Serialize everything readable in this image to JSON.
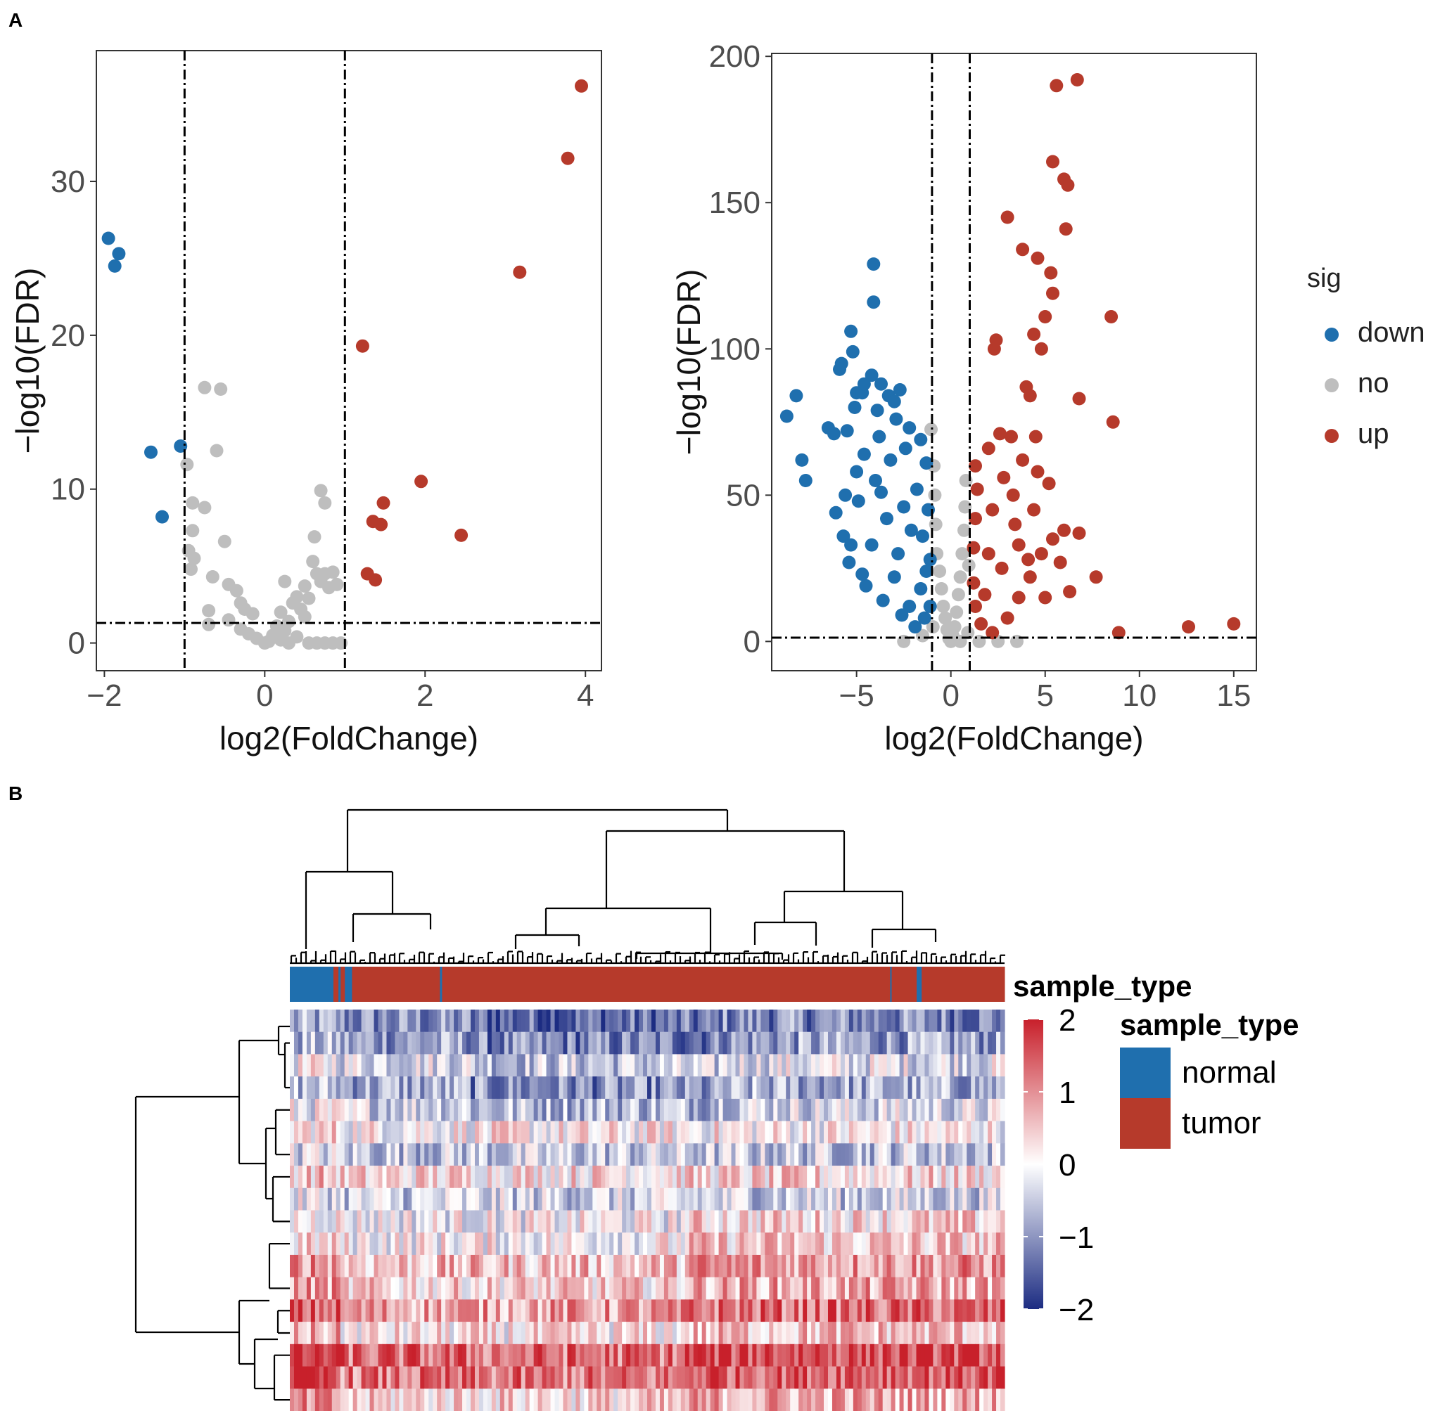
{
  "panels": {
    "a_label": "A",
    "b_label": "B"
  },
  "colors": {
    "down": "#1f6fae",
    "no": "#bebebe",
    "up": "#b63a2b",
    "normal": "#1f6fae",
    "tumor": "#b63a2b",
    "heat_low": "#1c2c82",
    "heat_mid": "#ffffff",
    "heat_high": "#c8202b"
  },
  "chart_data": [
    {
      "type": "scatter",
      "subtype": "volcano",
      "title": "",
      "xlabel": "log2(FoldChange)",
      "ylabel": "−log10(FDR)",
      "xlim": [
        -2.1,
        4.2
      ],
      "ylim": [
        -1.8,
        38.5
      ],
      "xticks": [
        -2,
        0,
        2,
        4
      ],
      "xtick_labels": [
        "−2",
        "0",
        "2",
        "4"
      ],
      "yticks": [
        0,
        10,
        20,
        30
      ],
      "ytick_labels": [
        "0",
        "10",
        "20",
        "30"
      ],
      "grid": false,
      "cutoffs": {
        "x": [
          -1,
          1
        ],
        "y": 1.3
      },
      "series": [
        {
          "name": "down",
          "points": [
            [
              -1.95,
              26.3
            ],
            [
              -1.82,
              25.3
            ],
            [
              -1.87,
              24.5
            ],
            [
              -1.42,
              12.4
            ],
            [
              -1.05,
              12.8
            ],
            [
              -1.28,
              8.2
            ]
          ]
        },
        {
          "name": "no",
          "points": [
            [
              -0.75,
              16.6
            ],
            [
              -0.55,
              16.5
            ],
            [
              -0.6,
              12.5
            ],
            [
              -0.97,
              11.6
            ],
            [
              -0.9,
              9.1
            ],
            [
              -0.75,
              8.8
            ],
            [
              -0.9,
              7.3
            ],
            [
              -0.5,
              6.6
            ],
            [
              -0.95,
              6.0
            ],
            [
              -0.88,
              5.5
            ],
            [
              -0.92,
              4.8
            ],
            [
              -0.65,
              4.3
            ],
            [
              -0.45,
              3.8
            ],
            [
              -0.35,
              3.4
            ],
            [
              -0.7,
              2.1
            ],
            [
              -0.3,
              2.6
            ],
            [
              -0.25,
              2.2
            ],
            [
              -0.15,
              1.9
            ],
            [
              -0.7,
              1.2
            ],
            [
              -0.45,
              1.5
            ],
            [
              -0.3,
              0.9
            ],
            [
              -0.2,
              0.6
            ],
            [
              -0.1,
              0.3
            ],
            [
              0.05,
              0.1
            ],
            [
              0.1,
              0.5
            ],
            [
              0.15,
              1.1
            ],
            [
              0.2,
              2.0
            ],
            [
              0.25,
              0.8
            ],
            [
              0.3,
              1.4
            ],
            [
              0.35,
              2.6
            ],
            [
              0.4,
              3.0
            ],
            [
              0.25,
              4.0
            ],
            [
              0.45,
              2.2
            ],
            [
              0.5,
              1.7
            ],
            [
              0.55,
              2.9
            ],
            [
              0.65,
              4.5
            ],
            [
              0.7,
              4.0
            ],
            [
              0.75,
              4.5
            ],
            [
              0.8,
              3.6
            ],
            [
              0.6,
              5.3
            ],
            [
              0.5,
              3.7
            ],
            [
              0.7,
              9.9
            ],
            [
              0.75,
              9.1
            ],
            [
              0.62,
              6.9
            ],
            [
              0.85,
              4.6
            ],
            [
              0.9,
              3.8
            ],
            [
              0.55,
              0.0
            ],
            [
              0.65,
              0.0
            ],
            [
              0.75,
              0.0
            ],
            [
              0.85,
              0.0
            ],
            [
              0.95,
              0.0
            ],
            [
              0.4,
              0.4
            ],
            [
              0.3,
              0.0
            ],
            [
              0.2,
              0.2
            ],
            [
              0.0,
              0.0
            ]
          ]
        },
        {
          "name": "up",
          "points": [
            [
              3.95,
              36.2
            ],
            [
              3.78,
              31.5
            ],
            [
              3.18,
              24.1
            ],
            [
              1.22,
              19.3
            ],
            [
              1.95,
              10.5
            ],
            [
              1.48,
              9.1
            ],
            [
              1.35,
              7.9
            ],
            [
              1.45,
              7.7
            ],
            [
              2.45,
              7.0
            ],
            [
              1.28,
              4.5
            ],
            [
              1.38,
              4.1
            ]
          ]
        }
      ]
    },
    {
      "type": "scatter",
      "subtype": "volcano",
      "title": "",
      "xlabel": "log2(FoldChange)",
      "ylabel": "−log10(FDR)",
      "xlim": [
        -9.5,
        16.2
      ],
      "ylim": [
        -10,
        201
      ],
      "xticks": [
        -5,
        0,
        5,
        10,
        15
      ],
      "xtick_labels": [
        "−5",
        "0",
        "5",
        "10",
        "15"
      ],
      "yticks": [
        0,
        50,
        100,
        150,
        200
      ],
      "ytick_labels": [
        "0",
        "50",
        "100",
        "150",
        "200"
      ],
      "grid": false,
      "cutoffs": {
        "x": [
          -1,
          1
        ],
        "y": 1.3
      },
      "series": [
        {
          "name": "down",
          "points": [
            [
              -4.1,
              129
            ],
            [
              -4.1,
              116
            ],
            [
              -5.3,
              106
            ],
            [
              -5.2,
              99
            ],
            [
              -5.8,
              95
            ],
            [
              -5.9,
              93
            ],
            [
              -8.2,
              84
            ],
            [
              -8.7,
              77
            ],
            [
              -7.9,
              62
            ],
            [
              -7.7,
              55
            ],
            [
              -6.5,
              73
            ],
            [
              -5.0,
              85
            ],
            [
              -4.7,
              85
            ],
            [
              -4.2,
              91
            ],
            [
              -3.7,
              88
            ],
            [
              -3.3,
              84
            ],
            [
              -2.7,
              86
            ],
            [
              -3.0,
              82
            ],
            [
              -5.5,
              72
            ],
            [
              -5.1,
              80
            ],
            [
              -6.2,
              71
            ],
            [
              -4.6,
              88
            ],
            [
              -3.9,
              79
            ],
            [
              -2.9,
              76
            ],
            [
              -2.2,
              73
            ],
            [
              -1.6,
              69
            ],
            [
              -1.3,
              61
            ],
            [
              -1.2,
              45
            ],
            [
              -1.1,
              28
            ],
            [
              -1.1,
              12
            ],
            [
              -1.4,
              8
            ],
            [
              -1.9,
              5
            ],
            [
              -2.6,
              9
            ],
            [
              -3.6,
              14
            ],
            [
              -4.5,
              19
            ],
            [
              -5.4,
              27
            ],
            [
              -6.1,
              44
            ],
            [
              -5.7,
              36
            ],
            [
              -4.9,
              48
            ],
            [
              -4.0,
              55
            ],
            [
              -3.2,
              62
            ],
            [
              -2.4,
              66
            ],
            [
              -1.8,
              52
            ],
            [
              -2.1,
              38
            ],
            [
              -2.8,
              30
            ],
            [
              -3.4,
              42
            ],
            [
              -4.2,
              33
            ],
            [
              -5.0,
              58
            ],
            [
              -5.6,
              50
            ],
            [
              -4.6,
              64
            ],
            [
              -3.8,
              70
            ],
            [
              -2.5,
              46
            ],
            [
              -3.0,
              22
            ],
            [
              -1.6,
              18
            ],
            [
              -2.2,
              12
            ],
            [
              -4.7,
              23
            ],
            [
              -5.3,
              33
            ],
            [
              -3.7,
              51
            ],
            [
              -1.5,
              36
            ],
            [
              -1.3,
              24
            ]
          ]
        },
        {
          "name": "no",
          "points": [
            [
              -1.05,
              72.5
            ],
            [
              -0.9,
              60
            ],
            [
              -0.85,
              50
            ],
            [
              -0.8,
              40
            ],
            [
              -0.75,
              30
            ],
            [
              -0.6,
              24
            ],
            [
              -0.5,
              18
            ],
            [
              -0.4,
              12
            ],
            [
              -0.3,
              8
            ],
            [
              -0.2,
              4
            ],
            [
              -0.1,
              1
            ],
            [
              0.0,
              0
            ],
            [
              0.1,
              2
            ],
            [
              0.2,
              5
            ],
            [
              0.3,
              10
            ],
            [
              0.4,
              16
            ],
            [
              0.5,
              22
            ],
            [
              0.6,
              30
            ],
            [
              0.7,
              38
            ],
            [
              0.75,
              46
            ],
            [
              0.8,
              55
            ],
            [
              0.5,
              0
            ],
            [
              1.5,
              0
            ],
            [
              2.5,
              0
            ],
            [
              3.5,
              0
            ],
            [
              -2.5,
              0
            ],
            [
              -1.5,
              2
            ],
            [
              0.9,
              3
            ],
            [
              -0.95,
              5
            ],
            [
              0.95,
              26
            ]
          ]
        },
        {
          "name": "up",
          "points": [
            [
              6.7,
              192
            ],
            [
              5.6,
              190
            ],
            [
              5.4,
              164
            ],
            [
              6.0,
              158
            ],
            [
              6.2,
              156
            ],
            [
              6.1,
              141
            ],
            [
              3.0,
              145
            ],
            [
              3.8,
              134
            ],
            [
              4.6,
              131
            ],
            [
              5.3,
              126
            ],
            [
              5.4,
              119
            ],
            [
              5.0,
              111
            ],
            [
              8.5,
              111
            ],
            [
              4.4,
              105
            ],
            [
              2.4,
              103
            ],
            [
              2.3,
              100
            ],
            [
              4.8,
              100
            ],
            [
              4.0,
              87
            ],
            [
              4.2,
              84
            ],
            [
              6.8,
              83
            ],
            [
              8.6,
              75
            ],
            [
              2.6,
              71
            ],
            [
              3.2,
              70
            ],
            [
              4.5,
              70
            ],
            [
              2.0,
              66
            ],
            [
              1.3,
              60
            ],
            [
              1.4,
              52
            ],
            [
              1.3,
              42
            ],
            [
              1.2,
              32
            ],
            [
              1.2,
              20
            ],
            [
              1.3,
              12
            ],
            [
              1.6,
              6
            ],
            [
              2.2,
              3
            ],
            [
              3.0,
              8
            ],
            [
              3.6,
              15
            ],
            [
              4.2,
              22
            ],
            [
              4.8,
              30
            ],
            [
              5.4,
              35
            ],
            [
              6.0,
              38
            ],
            [
              6.8,
              37
            ],
            [
              7.7,
              22
            ],
            [
              8.9,
              3
            ],
            [
              12.6,
              5
            ],
            [
              15.0,
              6
            ],
            [
              5.2,
              54
            ],
            [
              4.6,
              58
            ],
            [
              3.8,
              62
            ],
            [
              2.8,
              56
            ],
            [
              2.2,
              45
            ],
            [
              3.4,
              40
            ],
            [
              4.1,
              28
            ],
            [
              5.8,
              27
            ],
            [
              6.3,
              17
            ],
            [
              2.7,
              25
            ],
            [
              1.8,
              16
            ],
            [
              3.3,
              50
            ],
            [
              4.4,
              45
            ],
            [
              5.0,
              15
            ],
            [
              2.0,
              30
            ],
            [
              3.6,
              33
            ]
          ]
        }
      ]
    },
    {
      "type": "heatmap",
      "title": "",
      "annotation_label": "sample_type",
      "legend_title": "sample_type",
      "legend_items": [
        "normal",
        "tumor"
      ],
      "colorbar_range": [
        -2,
        2
      ],
      "colorbar_ticks": [
        2,
        1,
        0,
        -1,
        -2
      ],
      "colorbar_tick_labels": [
        "2",
        "1",
        "0",
        "−1",
        "−2"
      ],
      "annotation_segments": [
        {
          "type": "normal",
          "start": 0,
          "end": 0.061
        },
        {
          "type": "tumor",
          "start": 0.061,
          "end": 0.068
        },
        {
          "type": "normal",
          "start": 0.068,
          "end": 0.071
        },
        {
          "type": "tumor",
          "start": 0.071,
          "end": 0.077
        },
        {
          "type": "normal",
          "start": 0.077,
          "end": 0.087
        },
        {
          "type": "tumor",
          "start": 0.087,
          "end": 0.21
        },
        {
          "type": "normal",
          "start": 0.21,
          "end": 0.213
        },
        {
          "type": "tumor",
          "start": 0.213,
          "end": 0.84
        },
        {
          "type": "normal",
          "start": 0.84,
          "end": 0.842
        },
        {
          "type": "tumor",
          "start": 0.842,
          "end": 0.877
        },
        {
          "type": "normal",
          "start": 0.877,
          "end": 0.884
        },
        {
          "type": "tumor",
          "start": 0.884,
          "end": 1.0
        }
      ],
      "row_means": [
        -1.1,
        -0.9,
        -0.2,
        -0.8,
        -0.3,
        0.1,
        -0.5,
        0.3,
        -0.4,
        0.0,
        0.1,
        0.6,
        0.4,
        0.9,
        0.2,
        1.3,
        1.2,
        0.4
      ]
    }
  ]
}
